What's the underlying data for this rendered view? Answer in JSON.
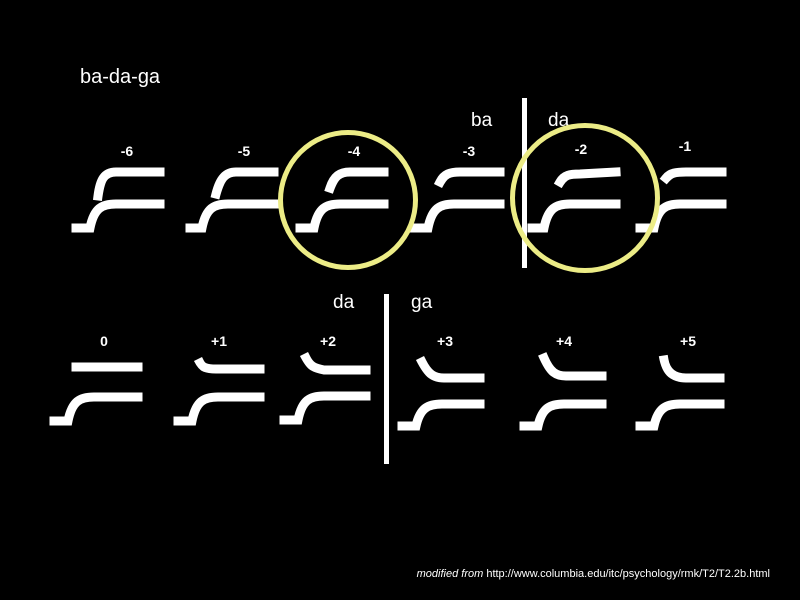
{
  "title": "ba-da-ga",
  "row1": {
    "left_label": "ba",
    "right_label": "da",
    "stimuli": [
      "-6",
      "-5",
      "-4",
      "-3",
      "-2",
      "-1"
    ]
  },
  "row2": {
    "left_label": "da",
    "right_label": "ga",
    "stimuli": [
      "0",
      "+1",
      "+2",
      "+3",
      "+4",
      "+5"
    ]
  },
  "highlighted_stimuli": [
    "-4",
    "-2"
  ],
  "highlight_color": "#ecec86",
  "footer": {
    "prefix": "modified from",
    "url": "http://www.columbia.edu/itc/psychology/rmk/T2/T2.2b.html"
  }
}
